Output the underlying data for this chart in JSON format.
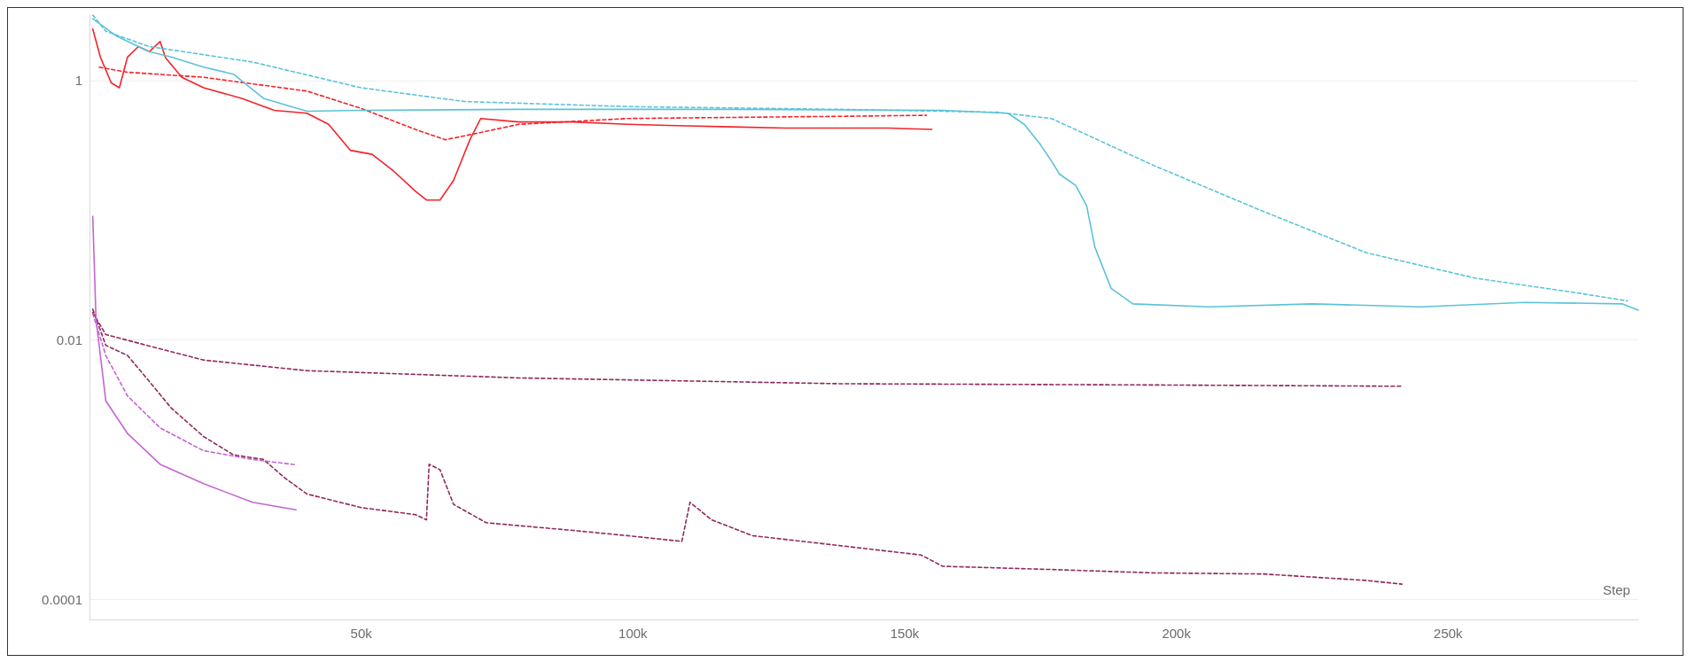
{
  "chart_data": {
    "type": "line",
    "xlabel": "Step",
    "log": "y",
    "grid": "y",
    "marker": "none",
    "xlim": [
      0,
      285000
    ],
    "xticks": [
      {
        "value": 50000,
        "label": "50k"
      },
      {
        "value": 100000,
        "label": "100k"
      },
      {
        "value": 150000,
        "label": "150k"
      },
      {
        "value": 200000,
        "label": "200k"
      },
      {
        "value": 250000,
        "label": "250k"
      }
    ],
    "ylim": [
      7e-05,
      3.2
    ],
    "yticks": [
      {
        "value": 0.0001,
        "label": "0.0001"
      },
      {
        "value": 0.01,
        "label": "0.01"
      },
      {
        "value": 1,
        "label": "1"
      }
    ],
    "series": [
      {
        "color": "#f2242b",
        "line_style": "solid",
        "x": [
          600,
          2000,
          4000,
          5500,
          7000,
          9000,
          11000,
          13000,
          14000,
          17000,
          21000,
          28000,
          34000,
          40000,
          44000,
          48000,
          52000,
          56000,
          60000,
          62000,
          64500,
          67000,
          70000,
          72000,
          79000,
          89000,
          99000,
          108000,
          118000,
          128000,
          138000,
          147000,
          155000
        ],
        "values": [
          2.5,
          1.52,
          0.96,
          0.88,
          1.52,
          1.83,
          1.67,
          2.0,
          1.5,
          1.06,
          0.88,
          0.73,
          0.59,
          0.56,
          0.46,
          0.29,
          0.27,
          0.2,
          0.14,
          0.12,
          0.12,
          0.17,
          0.35,
          0.51,
          0.48,
          0.48,
          0.46,
          0.45,
          0.44,
          0.43,
          0.43,
          0.43,
          0.42
        ]
      },
      {
        "color": "#f2242b",
        "line_style": "dashed",
        "x": [
          1800,
          7000,
          21000,
          40000,
          50000,
          60000,
          65500,
          71000,
          79000,
          99000,
          118000,
          138000,
          154000
        ],
        "values": [
          1.27,
          1.16,
          1.06,
          0.83,
          0.61,
          0.42,
          0.35,
          0.39,
          0.46,
          0.51,
          0.52,
          0.53,
          0.54
        ]
      },
      {
        "color": "#5bc3d9",
        "line_style": "solid",
        "x": [
          600,
          5000,
          11000,
          15000,
          21000,
          26500,
          32000,
          40000,
          50000,
          79000,
          118000,
          157000,
          169000,
          172000,
          175000,
          177000,
          178500,
          181500,
          183500,
          185000,
          188000,
          192000,
          206000,
          225000,
          245000,
          264000,
          282000,
          285000
        ],
        "values": [
          3.0,
          2.2,
          1.67,
          1.52,
          1.27,
          1.12,
          0.73,
          0.58,
          0.59,
          0.6,
          0.6,
          0.59,
          0.56,
          0.46,
          0.32,
          0.24,
          0.19,
          0.155,
          0.108,
          0.052,
          0.025,
          0.019,
          0.018,
          0.019,
          0.018,
          0.0195,
          0.019,
          0.017
        ]
      },
      {
        "color": "#5bc3d9",
        "line_style": "dashed",
        "x": [
          600,
          3000,
          11000,
          30000,
          50000,
          69000,
          99000,
          138000,
          167000,
          177000,
          196000,
          216000,
          235000,
          255000,
          274000,
          283000
        ],
        "values": [
          3.2,
          2.4,
          1.83,
          1.39,
          0.88,
          0.69,
          0.63,
          0.6,
          0.57,
          0.51,
          0.22,
          0.098,
          0.047,
          0.03,
          0.023,
          0.02
        ]
      },
      {
        "color": "#8e2a5c",
        "line_style": "dashed",
        "x": [
          600,
          3000,
          21000,
          40000,
          79000,
          138000,
          196000,
          241500
        ],
        "values": [
          0.0163,
          0.011,
          0.007,
          0.0058,
          0.0051,
          0.0046,
          0.0045,
          0.0044
        ]
      },
      {
        "color": "#8e2a5c",
        "line_style": "dashed",
        "x": [
          600,
          3000,
          7000,
          11000,
          15000,
          21000,
          26500,
          32000,
          36000,
          40000,
          50000,
          60000,
          62000,
          62500,
          64500,
          67000,
          73000,
          89000,
          99000,
          109000,
          110500,
          114500,
          122000,
          138000,
          153000,
          157000,
          177000,
          196000,
          216000,
          235000,
          241500
        ],
        "values": [
          0.0173,
          0.0091,
          0.0076,
          0.0048,
          0.003,
          0.0018,
          0.0013,
          0.0012,
          0.00086,
          0.00065,
          0.00051,
          0.00045,
          0.00041,
          0.0011,
          0.001,
          0.00054,
          0.00039,
          0.00034,
          0.00031,
          0.00028,
          0.00056,
          0.00041,
          0.00031,
          0.00026,
          0.00022,
          0.00018,
          0.00017,
          0.00016,
          0.000157,
          0.00014,
          0.000131
        ]
      },
      {
        "color": "#c465d4",
        "line_style": "solid",
        "x": [
          600,
          1200,
          3000,
          7000,
          13000,
          21000,
          30000,
          38000
        ],
        "values": [
          0.09,
          0.0145,
          0.0034,
          0.0019,
          0.0011,
          0.00078,
          0.00056,
          0.00049
        ]
      },
      {
        "color": "#c465d4",
        "line_style": "dashed",
        "x": [
          600,
          3000,
          7000,
          13000,
          21000,
          30000,
          38000
        ],
        "values": [
          0.016,
          0.0076,
          0.0037,
          0.0021,
          0.0014,
          0.0012,
          0.00109
        ]
      }
    ]
  }
}
